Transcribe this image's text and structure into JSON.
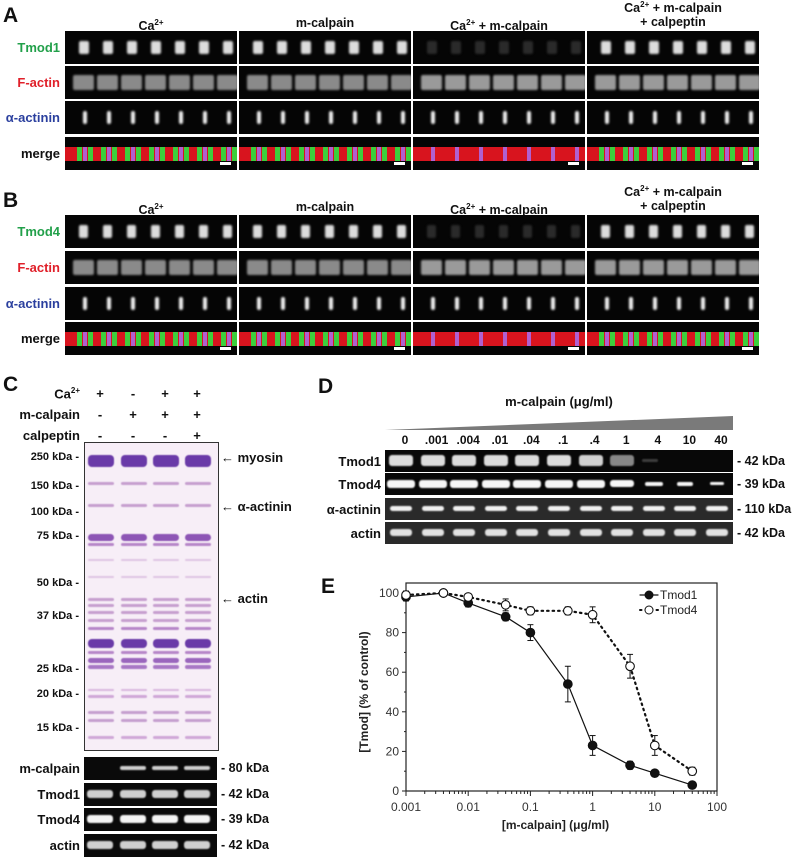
{
  "panels": {
    "A": {
      "letter": "A",
      "columns": [
        "Ca2+",
        "m-calpain",
        "Ca2+ + m-calpain",
        "Ca2+ + m-calpain + calpeptin"
      ],
      "column_display": [
        {
          "main": "Ca",
          "sup": "2+",
          "rest": ""
        },
        {
          "main": "m-calpain",
          "sup": "",
          "rest": ""
        },
        {
          "main": "Ca",
          "sup": "2+",
          "rest": " + m-calpain"
        },
        {
          "main": "Ca",
          "sup": "2+",
          "rest": " + m-calpain",
          "line2": "+ calpeptin"
        }
      ],
      "rows": [
        {
          "label": "Tmod1",
          "color": "#22a04a"
        },
        {
          "label": "F-actin",
          "color": "#e0202a"
        },
        {
          "label": "α-actinin",
          "color": "#2a3f9e"
        },
        {
          "label": "merge",
          "color": "#111111"
        }
      ]
    },
    "B": {
      "letter": "B",
      "column_display": [
        {
          "main": "Ca",
          "sup": "2+",
          "rest": ""
        },
        {
          "main": "m-calpain",
          "sup": "",
          "rest": ""
        },
        {
          "main": "Ca",
          "sup": "2+",
          "rest": " + m-calpain"
        },
        {
          "main": "Ca",
          "sup": "2+",
          "rest": " + m-calpain",
          "line2": "+ calpeptin"
        }
      ],
      "rows": [
        {
          "label": "Tmod4",
          "color": "#22a04a"
        },
        {
          "label": "F-actin",
          "color": "#e0202a"
        },
        {
          "label": "α-actinin",
          "color": "#2a3f9e"
        },
        {
          "label": "merge",
          "color": "#111111"
        }
      ]
    },
    "C": {
      "letter": "C",
      "conditions": [
        {
          "label": "Ca",
          "sup": "2+",
          "signs": [
            "+",
            "-",
            "+",
            "+"
          ]
        },
        {
          "label": "m-calpain",
          "sup": "",
          "signs": [
            "-",
            "+",
            "+",
            "+"
          ]
        },
        {
          "label": "calpeptin",
          "sup": "",
          "signs": [
            "-",
            "-",
            "-",
            "+"
          ]
        }
      ],
      "mw_markers": [
        "250 kDa -",
        "150 kDa -",
        "100 kDa -",
        "75 kDa -",
        "50 kDa -",
        "37 kDa -",
        "25 kDa -",
        "20 kDa -",
        "15 kDa -"
      ],
      "arrows": [
        "← myosin",
        "← α-actinin",
        "← actin"
      ],
      "blots": [
        {
          "label": "m-calpain",
          "kda": "- 80 kDa"
        },
        {
          "label": "Tmod1",
          "kda": "- 42 kDa"
        },
        {
          "label": "Tmod4",
          "kda": "- 39 kDa"
        },
        {
          "label": "actin",
          "kda": "- 42 kDa"
        }
      ]
    },
    "D": {
      "letter": "D",
      "title": "m-calpain (μg/ml)",
      "lanes": [
        "0",
        ".001",
        ".004",
        ".01",
        ".04",
        ".1",
        ".4",
        "1",
        "4",
        "10",
        "40"
      ],
      "blots": [
        {
          "label": "Tmod1",
          "kda": "- 42 kDa"
        },
        {
          "label": "Tmod4",
          "kda": "- 39 kDa"
        },
        {
          "label": "α-actinin",
          "kda": "- 110 kDa"
        },
        {
          "label": "actin",
          "kda": "- 42 kDa"
        }
      ]
    },
    "E": {
      "letter": "E"
    }
  },
  "chart_data": {
    "type": "line",
    "title": "",
    "xlabel": "[m-calpain] (μg/ml)",
    "ylabel": "[Tmod] (% of control)",
    "xscale": "log",
    "xlim": [
      0.001,
      100
    ],
    "ylim": [
      0,
      100
    ],
    "xticks": [
      "0.001",
      "0.01",
      "0.1",
      "1",
      "10",
      "100"
    ],
    "yticks": [
      "0",
      "20",
      "40",
      "60",
      "80",
      "100"
    ],
    "legend_position": "upper right",
    "grid": false,
    "x": [
      0.001,
      0.004,
      0.01,
      0.04,
      0.1,
      0.4,
      1,
      4,
      10,
      40
    ],
    "series": [
      {
        "name": "Tmod1",
        "marker": "filled-circle",
        "linestyle": "solid",
        "values": [
          98,
          100,
          95,
          88,
          80,
          54,
          23,
          13,
          9,
          3
        ],
        "errors": [
          2,
          1,
          2,
          2,
          4,
          9,
          5,
          2,
          1,
          1
        ]
      },
      {
        "name": "Tmod4",
        "marker": "open-circle",
        "linestyle": "dotted",
        "values": [
          99,
          100,
          98,
          94,
          91,
          91,
          89,
          63,
          23,
          10
        ],
        "errors": [
          2,
          1,
          1,
          3,
          2,
          2,
          4,
          6,
          5,
          2
        ]
      }
    ]
  }
}
